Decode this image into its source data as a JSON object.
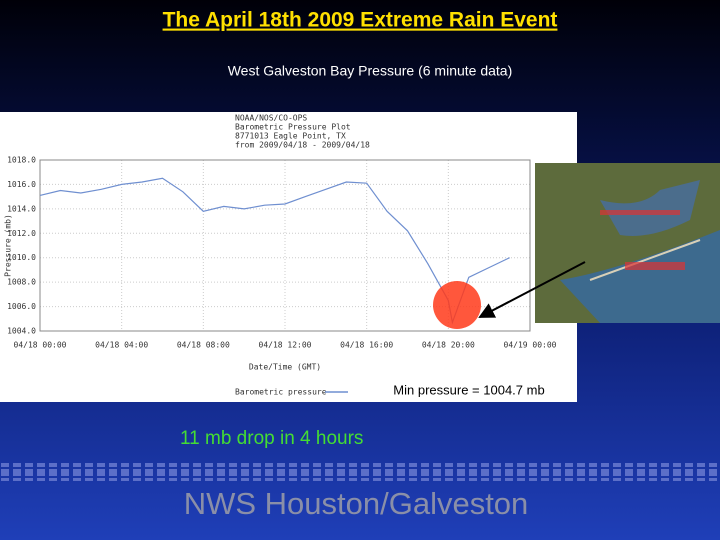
{
  "slide": {
    "title": "The April 18th 2009 Extreme Rain Event",
    "subtitle": "West Galveston Bay Pressure  (6 minute data)",
    "note": "11 mb drop in 4 hours",
    "footer": "NWS Houston/Galveston"
  },
  "chart_data": {
    "type": "line",
    "title_lines": [
      "NOAA/NOS/CO-OPS",
      "Barometric Pressure Plot",
      "8771013 Eagle Point, TX",
      "from 2009/04/18 - 2009/04/18"
    ],
    "xlabel": "Date/Time (GMT)",
    "ylabel": "Pressure (mb)",
    "annotation": "Min pressure = 1004.7 mb",
    "x": [
      0,
      1,
      2,
      3,
      4,
      5,
      6,
      7,
      8,
      9,
      10,
      11,
      12,
      13,
      14,
      15,
      16,
      17,
      18,
      19,
      20,
      20.2,
      21,
      22,
      23
    ],
    "series": [
      {
        "name": "Barometric pressure",
        "color": "#6f8fd0",
        "values": [
          1015.1,
          1015.5,
          1015.3,
          1015.6,
          1016.0,
          1016.2,
          1016.5,
          1015.4,
          1013.8,
          1014.2,
          1014.0,
          1014.3,
          1014.4,
          1015.0,
          1015.6,
          1016.2,
          1016.1,
          1013.8,
          1012.2,
          1009.5,
          1006.5,
          1004.7,
          1008.4,
          1009.2,
          1010.0
        ]
      }
    ],
    "xlim": [
      0,
      24
    ],
    "xticks": [
      {
        "value": 0,
        "label": "04/18 00:00"
      },
      {
        "value": 4,
        "label": "04/18 04:00"
      },
      {
        "value": 8,
        "label": "04/18 08:00"
      },
      {
        "value": 12,
        "label": "04/18 12:00"
      },
      {
        "value": 16,
        "label": "04/18 16:00"
      },
      {
        "value": 20,
        "label": "04/18 20:00"
      },
      {
        "value": 24,
        "label": "04/19 00:00"
      }
    ],
    "ylim": [
      1004,
      1018
    ],
    "yticks": [
      {
        "value": 1004,
        "label": "1004.0"
      },
      {
        "value": 1006,
        "label": "1006.0"
      },
      {
        "value": 1008,
        "label": "1008.0"
      },
      {
        "value": 1010,
        "label": "1010.0"
      },
      {
        "value": 1012,
        "label": "1012.0"
      },
      {
        "value": 1014,
        "label": "1014.0"
      },
      {
        "value": 1016,
        "label": "1016.0"
      },
      {
        "value": 1018,
        "label": "1018.0"
      }
    ],
    "grid": true
  }
}
